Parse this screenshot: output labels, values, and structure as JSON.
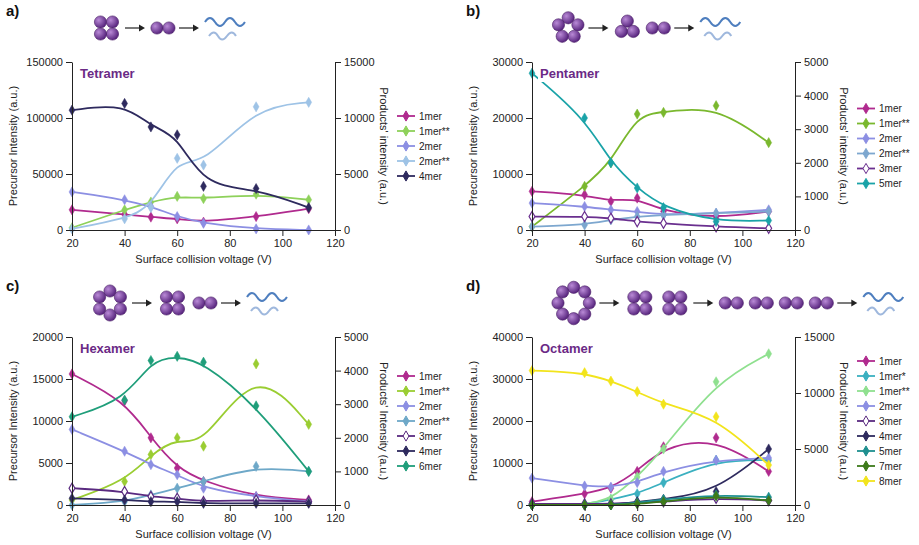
{
  "chart_data": [
    {
      "type": "line",
      "panel_label": "a)",
      "title": "Tetramer",
      "x_label": "Surface collision voltage (V)",
      "y_label": "Precursor Intensity (a.u.)",
      "y2_label": "Products' intensity (a.u.)",
      "x": [
        20,
        40,
        50,
        60,
        70,
        90,
        110
      ],
      "xlim": [
        20,
        120
      ],
      "xticks": [
        20,
        40,
        60,
        80,
        100,
        120
      ],
      "ylim": [
        0,
        150000
      ],
      "yticks": [
        0,
        50000,
        100000,
        150000
      ],
      "y2lim": [
        0,
        15000
      ],
      "y2ticks": [
        0,
        5000,
        10000,
        15000
      ],
      "marker": "diamond",
      "line_style": "solid",
      "legend": "right",
      "grid": false,
      "series": [
        {
          "name": "1mer",
          "color": "#b02a8e",
          "axis": "y2",
          "values": [
            1800,
            1400,
            1150,
            1000,
            700,
            1200,
            1900
          ]
        },
        {
          "name": "1mer**",
          "color": "#8ed15a",
          "axis": "y2",
          "values": [
            200,
            1800,
            2500,
            3000,
            2800,
            3200,
            2700
          ]
        },
        {
          "name": "2mer",
          "color": "#8c8fe3",
          "axis": "y2",
          "values": [
            3400,
            2700,
            2100,
            1200,
            600,
            100,
            0
          ]
        },
        {
          "name": "2mer**",
          "color": "#9ec3e6",
          "axis": "y2",
          "values": [
            100,
            1000,
            2000,
            6400,
            5800,
            11000,
            11400
          ]
        },
        {
          "name": "4mer",
          "color": "#2e2a5e",
          "axis": "y",
          "values": [
            107000,
            113000,
            92000,
            85000,
            39000,
            37000,
            20000
          ]
        }
      ]
    },
    {
      "type": "line",
      "panel_label": "b)",
      "title": "Pentamer",
      "x_label": "Surface collision voltage (V)",
      "y_label": "Precursor Intensity (a.u.)",
      "y2_label": "Products' intensity (a.u.)",
      "x": [
        20,
        40,
        50,
        60,
        70,
        90,
        110
      ],
      "xlim": [
        20,
        120
      ],
      "xticks": [
        20,
        40,
        60,
        80,
        100,
        120
      ],
      "ylim": [
        0,
        30000
      ],
      "yticks": [
        0,
        10000,
        20000,
        30000
      ],
      "y2lim": [
        0,
        5000
      ],
      "y2ticks": [
        0,
        1000,
        2000,
        3000,
        4000,
        5000
      ],
      "marker": "diamond",
      "line_style": "solid",
      "legend": "right",
      "grid": false,
      "series": [
        {
          "name": "1mer",
          "color": "#b02a8e",
          "axis": "y2",
          "values": [
            1150,
            1050,
            850,
            950,
            550,
            350,
            550
          ]
        },
        {
          "name": "1mer**",
          "color": "#7ab82e",
          "axis": "y2",
          "values": [
            100,
            1300,
            2000,
            3450,
            3500,
            3700,
            2600
          ]
        },
        {
          "name": "2mer",
          "color": "#8c8fe3",
          "axis": "y2",
          "values": [
            800,
            700,
            600,
            550,
            450,
            500,
            600
          ]
        },
        {
          "name": "2mer**",
          "color": "#7da7cf",
          "axis": "y2",
          "values": [
            100,
            150,
            300,
            400,
            450,
            500,
            550
          ]
        },
        {
          "name": "3mer",
          "color": "#6a2f8f",
          "axis": "y2",
          "marker": "open-diamond",
          "values": [
            400,
            400,
            350,
            250,
            200,
            100,
            50
          ]
        },
        {
          "name": "5mer",
          "color": "#1aa3a8",
          "axis": "y",
          "values": [
            28000,
            20000,
            12000,
            7500,
            4000,
            1500,
            1700
          ]
        }
      ]
    },
    {
      "type": "line",
      "panel_label": "c)",
      "title": "Hexamer",
      "x_label": "Surface collision voltage (V)",
      "y_label": "Precursor Intensity (a.u.)",
      "y2_label": "Products' Intensity (a.u.)",
      "x": [
        20,
        40,
        50,
        60,
        70,
        90,
        110
      ],
      "xlim": [
        20,
        120
      ],
      "xticks": [
        20,
        40,
        60,
        80,
        100,
        120
      ],
      "ylim": [
        0,
        20000
      ],
      "yticks": [
        0,
        5000,
        10000,
        15000,
        20000
      ],
      "y2lim": [
        0,
        5000
      ],
      "y2ticks": [
        0,
        1000,
        2000,
        3000,
        4000,
        5000
      ],
      "marker": "diamond",
      "line_style": "solid",
      "legend": "right",
      "grid": false,
      "series": [
        {
          "name": "1mer",
          "color": "#b02a8e",
          "axis": "y2",
          "values": [
            3900,
            3100,
            2000,
            1100,
            700,
            250,
            150
          ]
        },
        {
          "name": "1mer**",
          "color": "#9acd32",
          "axis": "y2",
          "values": [
            150,
            700,
            1500,
            2000,
            1750,
            4200,
            2400
          ]
        },
        {
          "name": "2mer",
          "color": "#8c8fe3",
          "axis": "y2",
          "values": [
            2250,
            1600,
            1200,
            900,
            500,
            250,
            100
          ]
        },
        {
          "name": "2mer**",
          "color": "#6ea8c8",
          "axis": "y2",
          "values": [
            0,
            100,
            300,
            500,
            700,
            1150,
            1000
          ]
        },
        {
          "name": "3mer",
          "color": "#5a2a80",
          "axis": "y2",
          "marker": "open-diamond",
          "values": [
            500,
            400,
            250,
            200,
            100,
            150,
            100
          ]
        },
        {
          "name": "4mer",
          "color": "#2e2a5e",
          "axis": "y2",
          "values": [
            200,
            150,
            100,
            100,
            50,
            50,
            50
          ]
        },
        {
          "name": "6mer",
          "color": "#1f9e7a",
          "axis": "y",
          "values": [
            10500,
            12500,
            17200,
            17700,
            17000,
            11800,
            4000
          ]
        }
      ]
    },
    {
      "type": "line",
      "panel_label": "d)",
      "title": "Octamer",
      "x_label": "Surface collision voltage (V)",
      "y_label": "Precursor Intensity (a.u.)",
      "y2_label": "Products' Intensity (a.u.)",
      "x": [
        20,
        40,
        50,
        60,
        70,
        90,
        110
      ],
      "xlim": [
        20,
        120
      ],
      "xticks": [
        20,
        40,
        60,
        80,
        100,
        120
      ],
      "ylim": [
        0,
        40000
      ],
      "yticks": [
        0,
        10000,
        20000,
        30000,
        40000
      ],
      "y2lim": [
        0,
        15000
      ],
      "y2ticks": [
        0,
        5000,
        10000,
        15000
      ],
      "marker": "diamond",
      "line_style": "solid",
      "legend": "right",
      "grid": false,
      "series": [
        {
          "name": "1mer",
          "color": "#b02a8e",
          "axis": "y2",
          "values": [
            300,
            1000,
            1500,
            3000,
            5200,
            6000,
            3000
          ]
        },
        {
          "name": "1mer*",
          "color": "#3bb0c0",
          "axis": "y2",
          "values": [
            0,
            0,
            500,
            1000,
            2000,
            4000,
            4000
          ]
        },
        {
          "name": "1mer**",
          "color": "#8fe08f",
          "axis": "y2",
          "values": [
            0,
            0,
            500,
            2500,
            5000,
            11000,
            13500
          ]
        },
        {
          "name": "2mer",
          "color": "#8c8fe3",
          "axis": "y2",
          "values": [
            2400,
            1700,
            1600,
            2000,
            3000,
            4000,
            4200
          ]
        },
        {
          "name": "3mer",
          "color": "#5a2a80",
          "axis": "y2",
          "marker": "open-diamond",
          "values": [
            100,
            100,
            100,
            200,
            300,
            600,
            400
          ]
        },
        {
          "name": "4mer",
          "color": "#2e2a5e",
          "axis": "y2",
          "values": [
            0,
            0,
            0,
            300,
            500,
            1200,
            5000
          ]
        },
        {
          "name": "5mer",
          "color": "#1e8f8f",
          "axis": "y2",
          "values": [
            0,
            0,
            0,
            200,
            500,
            900,
            700
          ]
        },
        {
          "name": "7mer",
          "color": "#3d7a1a",
          "axis": "y2",
          "values": [
            0,
            0,
            0,
            100,
            300,
            800,
            400
          ]
        },
        {
          "name": "8mer",
          "color": "#f2e41c",
          "axis": "y",
          "values": [
            32000,
            31500,
            29500,
            27000,
            24000,
            21000,
            9500
          ]
        }
      ]
    }
  ]
}
